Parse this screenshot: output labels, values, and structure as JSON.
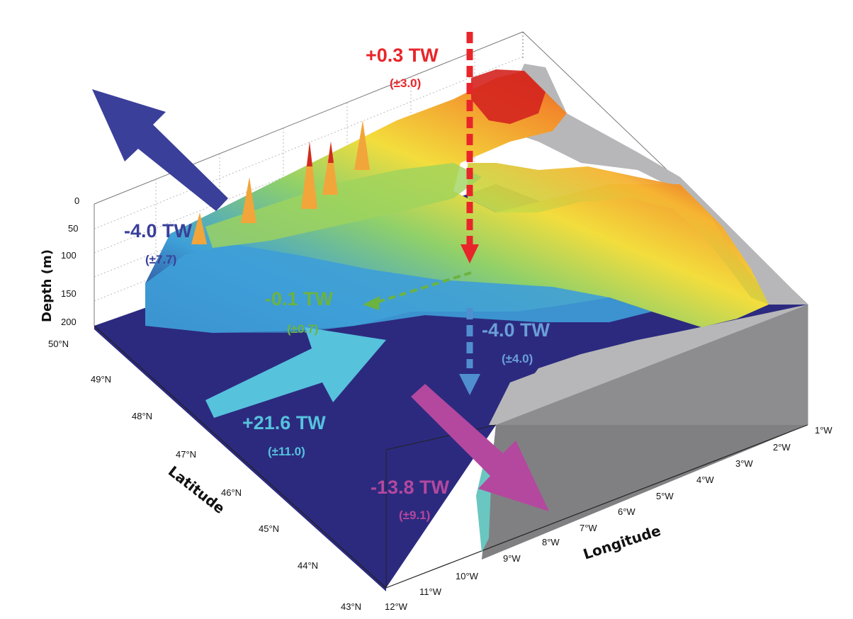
{
  "chart_data": {
    "type": "surface3d",
    "axes": {
      "depth": {
        "label": "Depth (m)",
        "ticks": [
          0,
          50,
          100,
          150,
          200
        ]
      },
      "latitude": {
        "label": "Latitude",
        "ticks": [
          "50°N",
          "49°N",
          "48°N",
          "47°N",
          "46°N",
          "45°N",
          "44°N",
          "43°N"
        ]
      },
      "longitude": {
        "label": "Longitude",
        "ticks": [
          "12°W",
          "11°W",
          "10°W",
          "9°W",
          "8°W",
          "7°W",
          "6°W",
          "5°W",
          "4°W",
          "3°W",
          "2°W",
          "1°W"
        ]
      }
    },
    "fluxes": [
      {
        "id": "top-red",
        "value": "+0.3 TW",
        "error": "(±3.0)",
        "color": "#e8262a"
      },
      {
        "id": "northwest-blue",
        "value": "-4.0 TW",
        "error": "(±7.7)",
        "color": "#3a3f9a"
      },
      {
        "id": "green-internal",
        "value": "-0.1 TW",
        "error": "(±0.7)",
        "color": "#6cb33f"
      },
      {
        "id": "vertical-lightblue",
        "value": "-4.0 TW",
        "error": "(±4.0)",
        "color": "#4f8fd0"
      },
      {
        "id": "inflow-cyan",
        "value": "+21.6 TW",
        "error": "(±11.0)",
        "color": "#56c2dc"
      },
      {
        "id": "south-magenta",
        "value": "-13.8 TW",
        "error": "(±9.1)",
        "color": "#b3489e"
      }
    ]
  }
}
